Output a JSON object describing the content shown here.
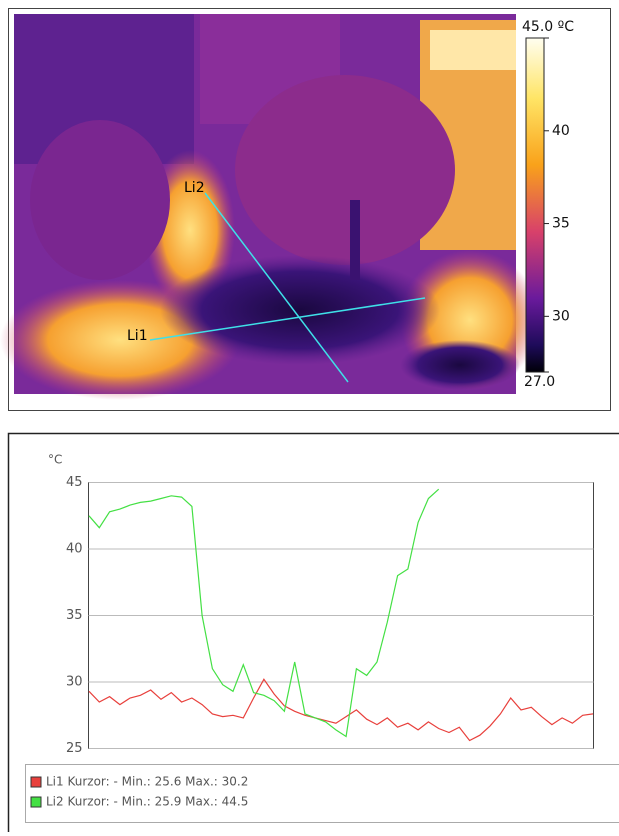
{
  "thermal_image": {
    "line_labels": [
      "Li1",
      "Li2"
    ],
    "colorbar": {
      "lim": [
        27,
        45
      ],
      "ticks": [
        {
          "value": 27,
          "label": "27.0"
        },
        30,
        35,
        40,
        {
          "value": 45,
          "label": "45.0 ºC"
        }
      ]
    }
  },
  "chart_data": {
    "type": "line",
    "y_label": "°C",
    "ylim": [
      25,
      45
    ],
    "yticks": [
      25,
      30,
      35,
      40,
      45
    ],
    "grid": true,
    "series": [
      {
        "name": "Li1 Kurzor: - Min.: 25.6 Max.: 30.2",
        "color": "#e8403c",
        "values": [
          29.3,
          28.5,
          28.9,
          28.3,
          28.8,
          29.0,
          29.4,
          28.7,
          29.2,
          28.5,
          28.8,
          28.3,
          27.6,
          27.4,
          27.5,
          27.3,
          28.8,
          30.2,
          29.1,
          28.2,
          27.8,
          27.5,
          27.3,
          27.1,
          26.9,
          27.4,
          27.9,
          27.2,
          26.8,
          27.3,
          26.6,
          26.9,
          26.4,
          27.0,
          26.5,
          26.2,
          26.6,
          25.6,
          26.0,
          26.7,
          27.6,
          28.8,
          27.9,
          28.1,
          27.4,
          26.8,
          27.3,
          26.9,
          27.5,
          27.6
        ]
      },
      {
        "name": "Li2 Kurzor: - Min.: 25.9 Max.: 44.5",
        "color": "#44e044",
        "values": [
          42.5,
          41.6,
          42.8,
          43.0,
          43.3,
          43.5,
          43.6,
          43.8,
          44.0,
          43.9,
          43.2,
          35.0,
          31.0,
          29.8,
          29.3,
          31.3,
          29.2,
          29.0,
          28.6,
          27.8,
          31.5,
          27.6,
          27.3,
          27.0,
          26.4,
          25.9,
          31.0,
          30.5,
          31.5,
          34.5,
          38.0,
          38.5,
          42.0,
          43.8,
          44.5,
          null,
          null,
          null,
          null,
          null,
          null,
          null,
          null,
          null,
          null,
          null,
          null,
          null,
          null,
          null
        ]
      }
    ]
  }
}
